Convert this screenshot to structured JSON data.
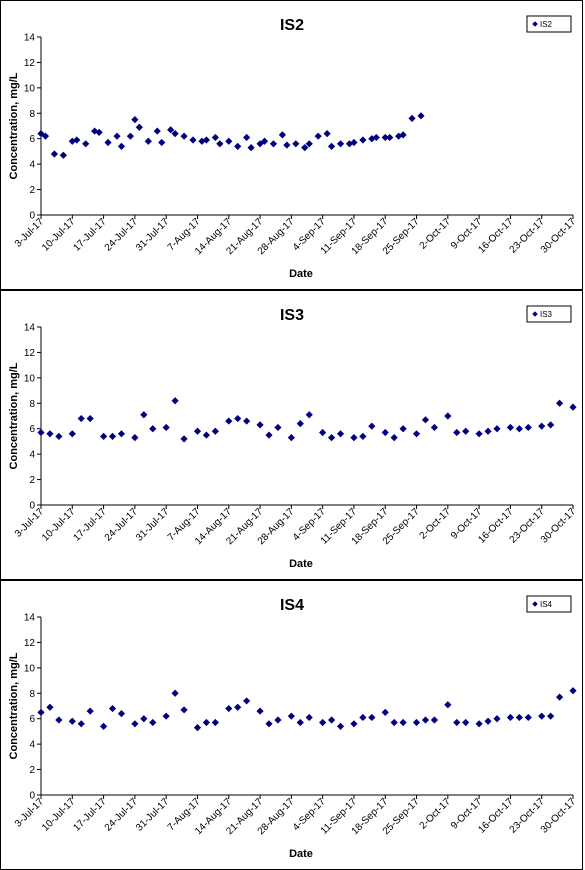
{
  "chart_data": [
    {
      "type": "scatter",
      "title": "IS2",
      "xlabel": "Date",
      "ylabel": "Concentration, mg/L",
      "ylim": [
        0,
        14
      ],
      "yticks": [
        0,
        2,
        4,
        6,
        8,
        10,
        12,
        14
      ],
      "xlim": [
        "2017-07-03",
        "2017-10-30"
      ],
      "xtick_labels": [
        "3-Jul-17",
        "10-Jul-17",
        "17-Jul-17",
        "24-Jul-17",
        "31-Jul-17",
        "7-Aug-17",
        "14-Aug-17",
        "21-Aug-17",
        "28-Aug-17",
        "4-Sep-17",
        "11-Sep-17",
        "18-Sep-17",
        "25-Sep-17",
        "2-Oct-17",
        "9-Oct-17",
        "16-Oct-17",
        "23-Oct-17",
        "30-Oct-17"
      ],
      "legend_position": "top-right",
      "grid": false,
      "series": [
        {
          "name": "IS2",
          "color": "#000080",
          "points": [
            {
              "x": "2017-07-03",
              "y": 6.4
            },
            {
              "x": "2017-07-04",
              "y": 6.2
            },
            {
              "x": "2017-07-06",
              "y": 4.8
            },
            {
              "x": "2017-07-08",
              "y": 4.7
            },
            {
              "x": "2017-07-10",
              "y": 5.8
            },
            {
              "x": "2017-07-11",
              "y": 5.9
            },
            {
              "x": "2017-07-13",
              "y": 5.6
            },
            {
              "x": "2017-07-15",
              "y": 6.6
            },
            {
              "x": "2017-07-16",
              "y": 6.5
            },
            {
              "x": "2017-07-18",
              "y": 5.7
            },
            {
              "x": "2017-07-20",
              "y": 6.2
            },
            {
              "x": "2017-07-21",
              "y": 5.4
            },
            {
              "x": "2017-07-23",
              "y": 6.2
            },
            {
              "x": "2017-07-24",
              "y": 7.5
            },
            {
              "x": "2017-07-25",
              "y": 6.9
            },
            {
              "x": "2017-07-27",
              "y": 5.8
            },
            {
              "x": "2017-07-29",
              "y": 6.6
            },
            {
              "x": "2017-07-30",
              "y": 5.7
            },
            {
              "x": "2017-08-01",
              "y": 6.7
            },
            {
              "x": "2017-08-02",
              "y": 6.4
            },
            {
              "x": "2017-08-04",
              "y": 6.2
            },
            {
              "x": "2017-08-06",
              "y": 5.9
            },
            {
              "x": "2017-08-08",
              "y": 5.8
            },
            {
              "x": "2017-08-09",
              "y": 5.9
            },
            {
              "x": "2017-08-11",
              "y": 6.1
            },
            {
              "x": "2017-08-12",
              "y": 5.6
            },
            {
              "x": "2017-08-14",
              "y": 5.8
            },
            {
              "x": "2017-08-16",
              "y": 5.4
            },
            {
              "x": "2017-08-18",
              "y": 6.1
            },
            {
              "x": "2017-08-19",
              "y": 5.3
            },
            {
              "x": "2017-08-21",
              "y": 5.6
            },
            {
              "x": "2017-08-22",
              "y": 5.8
            },
            {
              "x": "2017-08-24",
              "y": 5.6
            },
            {
              "x": "2017-08-26",
              "y": 6.3
            },
            {
              "x": "2017-08-27",
              "y": 5.5
            },
            {
              "x": "2017-08-29",
              "y": 5.6
            },
            {
              "x": "2017-08-31",
              "y": 5.3
            },
            {
              "x": "2017-09-01",
              "y": 5.6
            },
            {
              "x": "2017-09-03",
              "y": 6.2
            },
            {
              "x": "2017-09-05",
              "y": 6.4
            },
            {
              "x": "2017-09-06",
              "y": 5.4
            },
            {
              "x": "2017-09-08",
              "y": 5.6
            },
            {
              "x": "2017-09-10",
              "y": 5.6
            },
            {
              "x": "2017-09-11",
              "y": 5.7
            },
            {
              "x": "2017-09-13",
              "y": 5.9
            },
            {
              "x": "2017-09-15",
              "y": 6.0
            },
            {
              "x": "2017-09-16",
              "y": 6.1
            },
            {
              "x": "2017-09-18",
              "y": 6.1
            },
            {
              "x": "2017-09-19",
              "y": 6.1
            },
            {
              "x": "2017-09-21",
              "y": 6.2
            },
            {
              "x": "2017-09-22",
              "y": 6.3
            },
            {
              "x": "2017-09-24",
              "y": 7.6
            },
            {
              "x": "2017-09-26",
              "y": 7.8
            }
          ]
        }
      ]
    },
    {
      "type": "scatter",
      "title": "IS3",
      "xlabel": "Date",
      "ylabel": "Concentration, mg/L",
      "ylim": [
        0,
        14
      ],
      "yticks": [
        0,
        2,
        4,
        6,
        8,
        10,
        12,
        14
      ],
      "xlim": [
        "2017-07-03",
        "2017-10-30"
      ],
      "xtick_labels": [
        "3-Jul-17",
        "10-Jul-17",
        "17-Jul-17",
        "24-Jul-17",
        "31-Jul-17",
        "7-Aug-17",
        "14-Aug-17",
        "21-Aug-17",
        "28-Aug-17",
        "4-Sep-17",
        "11-Sep-17",
        "18-Sep-17",
        "25-Sep-17",
        "2-Oct-17",
        "9-Oct-17",
        "16-Oct-17",
        "23-Oct-17",
        "30-Oct-17"
      ],
      "legend_position": "top-right",
      "grid": false,
      "series": [
        {
          "name": "IS3",
          "color": "#000080",
          "points": [
            {
              "x": "2017-07-03",
              "y": 5.7
            },
            {
              "x": "2017-07-05",
              "y": 5.6
            },
            {
              "x": "2017-07-07",
              "y": 5.4
            },
            {
              "x": "2017-07-10",
              "y": 5.6
            },
            {
              "x": "2017-07-12",
              "y": 6.8
            },
            {
              "x": "2017-07-14",
              "y": 6.8
            },
            {
              "x": "2017-07-17",
              "y": 5.4
            },
            {
              "x": "2017-07-19",
              "y": 5.4
            },
            {
              "x": "2017-07-21",
              "y": 5.6
            },
            {
              "x": "2017-07-24",
              "y": 5.3
            },
            {
              "x": "2017-07-26",
              "y": 7.1
            },
            {
              "x": "2017-07-28",
              "y": 6.0
            },
            {
              "x": "2017-07-31",
              "y": 6.1
            },
            {
              "x": "2017-08-02",
              "y": 8.2
            },
            {
              "x": "2017-08-04",
              "y": 5.2
            },
            {
              "x": "2017-08-07",
              "y": 5.8
            },
            {
              "x": "2017-08-09",
              "y": 5.5
            },
            {
              "x": "2017-08-11",
              "y": 5.8
            },
            {
              "x": "2017-08-14",
              "y": 6.6
            },
            {
              "x": "2017-08-16",
              "y": 6.8
            },
            {
              "x": "2017-08-18",
              "y": 6.6
            },
            {
              "x": "2017-08-21",
              "y": 6.3
            },
            {
              "x": "2017-08-23",
              "y": 5.5
            },
            {
              "x": "2017-08-25",
              "y": 6.1
            },
            {
              "x": "2017-08-28",
              "y": 5.3
            },
            {
              "x": "2017-08-30",
              "y": 6.4
            },
            {
              "x": "2017-09-01",
              "y": 7.1
            },
            {
              "x": "2017-09-04",
              "y": 5.7
            },
            {
              "x": "2017-09-06",
              "y": 5.3
            },
            {
              "x": "2017-09-08",
              "y": 5.6
            },
            {
              "x": "2017-09-11",
              "y": 5.3
            },
            {
              "x": "2017-09-13",
              "y": 5.4
            },
            {
              "x": "2017-09-15",
              "y": 6.2
            },
            {
              "x": "2017-09-18",
              "y": 5.7
            },
            {
              "x": "2017-09-20",
              "y": 5.3
            },
            {
              "x": "2017-09-22",
              "y": 6.0
            },
            {
              "x": "2017-09-25",
              "y": 5.6
            },
            {
              "x": "2017-09-27",
              "y": 6.7
            },
            {
              "x": "2017-09-29",
              "y": 6.1
            },
            {
              "x": "2017-10-02",
              "y": 7.0
            },
            {
              "x": "2017-10-04",
              "y": 5.7
            },
            {
              "x": "2017-10-06",
              "y": 5.8
            },
            {
              "x": "2017-10-09",
              "y": 5.6
            },
            {
              "x": "2017-10-11",
              "y": 5.8
            },
            {
              "x": "2017-10-13",
              "y": 6.0
            },
            {
              "x": "2017-10-16",
              "y": 6.1
            },
            {
              "x": "2017-10-18",
              "y": 6.0
            },
            {
              "x": "2017-10-20",
              "y": 6.1
            },
            {
              "x": "2017-10-23",
              "y": 6.2
            },
            {
              "x": "2017-10-25",
              "y": 6.3
            },
            {
              "x": "2017-10-27",
              "y": 8.0
            },
            {
              "x": "2017-10-30",
              "y": 7.7
            }
          ]
        }
      ]
    },
    {
      "type": "scatter",
      "title": "IS4",
      "xlabel": "Date",
      "ylabel": "Concentration, mg/L",
      "ylim": [
        0,
        14
      ],
      "yticks": [
        0,
        2,
        4,
        6,
        8,
        10,
        12,
        14
      ],
      "xlim": [
        "2017-07-03",
        "2017-10-30"
      ],
      "xtick_labels": [
        "3-Jul-17",
        "10-Jul-17",
        "17-Jul-17",
        "24-Jul-17",
        "31-Jul-17",
        "7-Aug-17",
        "14-Aug-17",
        "21-Aug-17",
        "28-Aug-17",
        "4-Sep-17",
        "11-Sep-17",
        "18-Sep-17",
        "25-Sep-17",
        "2-Oct-17",
        "9-Oct-17",
        "16-Oct-17",
        "23-Oct-17",
        "30-Oct-17"
      ],
      "legend_position": "top-right",
      "grid": false,
      "series": [
        {
          "name": "IS4",
          "color": "#000080",
          "points": [
            {
              "x": "2017-07-03",
              "y": 6.5
            },
            {
              "x": "2017-07-05",
              "y": 6.9
            },
            {
              "x": "2017-07-07",
              "y": 5.9
            },
            {
              "x": "2017-07-10",
              "y": 5.8
            },
            {
              "x": "2017-07-12",
              "y": 5.6
            },
            {
              "x": "2017-07-14",
              "y": 6.6
            },
            {
              "x": "2017-07-17",
              "y": 5.4
            },
            {
              "x": "2017-07-19",
              "y": 6.8
            },
            {
              "x": "2017-07-21",
              "y": 6.4
            },
            {
              "x": "2017-07-24",
              "y": 5.6
            },
            {
              "x": "2017-07-26",
              "y": 6.0
            },
            {
              "x": "2017-07-28",
              "y": 5.7
            },
            {
              "x": "2017-07-31",
              "y": 6.2
            },
            {
              "x": "2017-08-02",
              "y": 8.0
            },
            {
              "x": "2017-08-04",
              "y": 6.7
            },
            {
              "x": "2017-08-07",
              "y": 5.3
            },
            {
              "x": "2017-08-09",
              "y": 5.7
            },
            {
              "x": "2017-08-11",
              "y": 5.7
            },
            {
              "x": "2017-08-14",
              "y": 6.8
            },
            {
              "x": "2017-08-16",
              "y": 6.9
            },
            {
              "x": "2017-08-18",
              "y": 7.4
            },
            {
              "x": "2017-08-21",
              "y": 6.6
            },
            {
              "x": "2017-08-23",
              "y": 5.6
            },
            {
              "x": "2017-08-25",
              "y": 5.9
            },
            {
              "x": "2017-08-28",
              "y": 6.2
            },
            {
              "x": "2017-08-30",
              "y": 5.7
            },
            {
              "x": "2017-09-01",
              "y": 6.1
            },
            {
              "x": "2017-09-04",
              "y": 5.7
            },
            {
              "x": "2017-09-06",
              "y": 5.9
            },
            {
              "x": "2017-09-08",
              "y": 5.4
            },
            {
              "x": "2017-09-11",
              "y": 5.6
            },
            {
              "x": "2017-09-13",
              "y": 6.1
            },
            {
              "x": "2017-09-15",
              "y": 6.1
            },
            {
              "x": "2017-09-18",
              "y": 6.5
            },
            {
              "x": "2017-09-20",
              "y": 5.7
            },
            {
              "x": "2017-09-22",
              "y": 5.7
            },
            {
              "x": "2017-09-25",
              "y": 5.7
            },
            {
              "x": "2017-09-27",
              "y": 5.9
            },
            {
              "x": "2017-09-29",
              "y": 5.9
            },
            {
              "x": "2017-10-02",
              "y": 7.1
            },
            {
              "x": "2017-10-04",
              "y": 5.7
            },
            {
              "x": "2017-10-06",
              "y": 5.7
            },
            {
              "x": "2017-10-09",
              "y": 5.6
            },
            {
              "x": "2017-10-11",
              "y": 5.8
            },
            {
              "x": "2017-10-13",
              "y": 6.0
            },
            {
              "x": "2017-10-16",
              "y": 6.1
            },
            {
              "x": "2017-10-18",
              "y": 6.1
            },
            {
              "x": "2017-10-20",
              "y": 6.1
            },
            {
              "x": "2017-10-23",
              "y": 6.2
            },
            {
              "x": "2017-10-25",
              "y": 6.2
            },
            {
              "x": "2017-10-27",
              "y": 7.7
            },
            {
              "x": "2017-10-30",
              "y": 8.2
            }
          ]
        }
      ]
    }
  ]
}
